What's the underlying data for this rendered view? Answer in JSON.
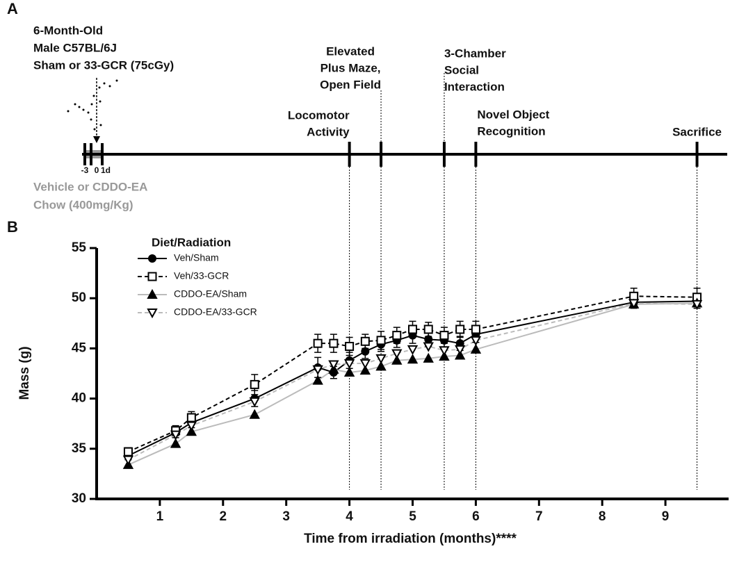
{
  "panel_labels": [
    "A",
    "B"
  ],
  "timeline": {
    "cohort_lines": [
      "6-Month-Old",
      "Male C57BL/6J",
      "Sham or 33-GCR (75cGy)"
    ],
    "diet_lines": [
      "Vehicle or CDDO-EA",
      "Chow (400mg/Kg)"
    ],
    "day_labels": [
      "-3",
      "0",
      "1d"
    ],
    "events": [
      {
        "month": 4,
        "label_lines": [
          "Locomotor",
          "Activity"
        ]
      },
      {
        "month": 4.5,
        "label_lines": [
          "Elevated",
          "Plus Maze,",
          "Open Field"
        ]
      },
      {
        "month": 5.5,
        "label_lines": [
          "3-Chamber",
          "Social",
          "Interaction"
        ]
      },
      {
        "month": 6,
        "label_lines": [
          "Novel Object",
          "Recognition"
        ]
      },
      {
        "month": 9.5,
        "label_lines": [
          "Sacrifice"
        ]
      }
    ]
  },
  "chart_data": {
    "type": "line",
    "x_label": "Time from irradiation (months)****",
    "y_label": "Mass (g)",
    "legend_title": "Diet/Radiation",
    "xlim": [
      0,
      10
    ],
    "ylim": [
      30,
      55
    ],
    "xticks": [
      1,
      2,
      3,
      4,
      5,
      6,
      7,
      8,
      9
    ],
    "yticks": [
      30,
      35,
      40,
      45,
      50,
      55
    ],
    "x": [
      0.5,
      1.25,
      1.5,
      2.5,
      3.5,
      3.75,
      4,
      4.25,
      4.5,
      4.75,
      5,
      5.25,
      5.5,
      5.75,
      6,
      8.5,
      9.5
    ],
    "series": [
      {
        "name": "Veh/Sham",
        "color": "#000000",
        "marker": "circle",
        "dashed": false,
        "open": false,
        "values": [
          34.3,
          36.6,
          37.6,
          40.0,
          43.1,
          42.6,
          43.8,
          44.7,
          45.4,
          45.8,
          46.3,
          45.9,
          45.8,
          45.5,
          46.4,
          49.6,
          49.7
        ],
        "errors": [
          0.4,
          0.5,
          0.5,
          0.8,
          1.0,
          0.6,
          0.8,
          0.7,
          0.7,
          0.7,
          0.8,
          0.7,
          0.7,
          0.7,
          0.8,
          0.6,
          0.7
        ]
      },
      {
        "name": "Veh/33-GCR",
        "color": "#000000",
        "marker": "square",
        "dashed": true,
        "open": true,
        "values": [
          34.7,
          36.8,
          38.1,
          41.4,
          45.5,
          45.5,
          45.2,
          45.7,
          45.8,
          46.3,
          46.9,
          46.9,
          46.3,
          46.9,
          46.9,
          50.2,
          50.1
        ],
        "errors": [
          0.4,
          0.5,
          0.6,
          1.0,
          0.9,
          0.9,
          0.9,
          0.7,
          0.9,
          0.8,
          0.8,
          0.7,
          0.8,
          0.8,
          0.8,
          0.8,
          0.9
        ]
      },
      {
        "name": "CDDO-EA/Sham",
        "color": "#bbbbbb",
        "marker": "triangle",
        "dashed": false,
        "open": false,
        "values": [
          33.4,
          35.5,
          36.7,
          38.4,
          41.8,
          42.9,
          42.6,
          42.8,
          43.2,
          43.8,
          43.9,
          44.0,
          44.2,
          44.3,
          44.9,
          49.4,
          49.5
        ]
      },
      {
        "name": "CDDO-EA/33-GCR",
        "color": "#bbbbbb",
        "marker": "triangle-down",
        "dashed": true,
        "open": true,
        "values": [
          33.9,
          36.4,
          37.3,
          39.7,
          42.9,
          43.4,
          43.5,
          43.5,
          44.0,
          44.5,
          44.9,
          45.2,
          44.8,
          44.9,
          45.8,
          49.5,
          49.4
        ]
      }
    ]
  }
}
